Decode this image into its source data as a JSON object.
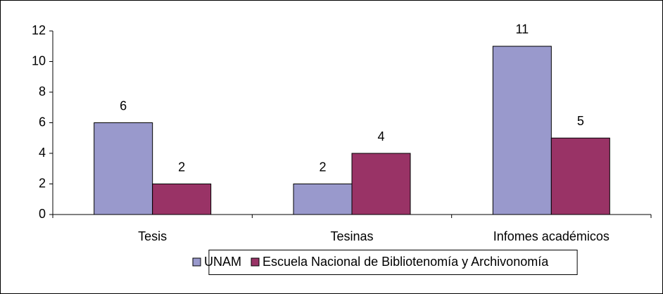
{
  "chart_data": {
    "type": "bar",
    "categories": [
      "Tesis",
      "Tesinas",
      "Infomes académicos"
    ],
    "series": [
      {
        "name": "UNAM",
        "color": "#9999cc",
        "values": [
          6,
          2,
          11
        ]
      },
      {
        "name": "Escuela Nacional de Bibliotenomía y Archivonomía",
        "color": "#993366",
        "values": [
          2,
          4,
          5
        ]
      }
    ],
    "ylim": [
      0,
      12
    ],
    "yticks": [
      0,
      2,
      4,
      6,
      8,
      10,
      12
    ],
    "grid": false,
    "legend": "bottom"
  }
}
